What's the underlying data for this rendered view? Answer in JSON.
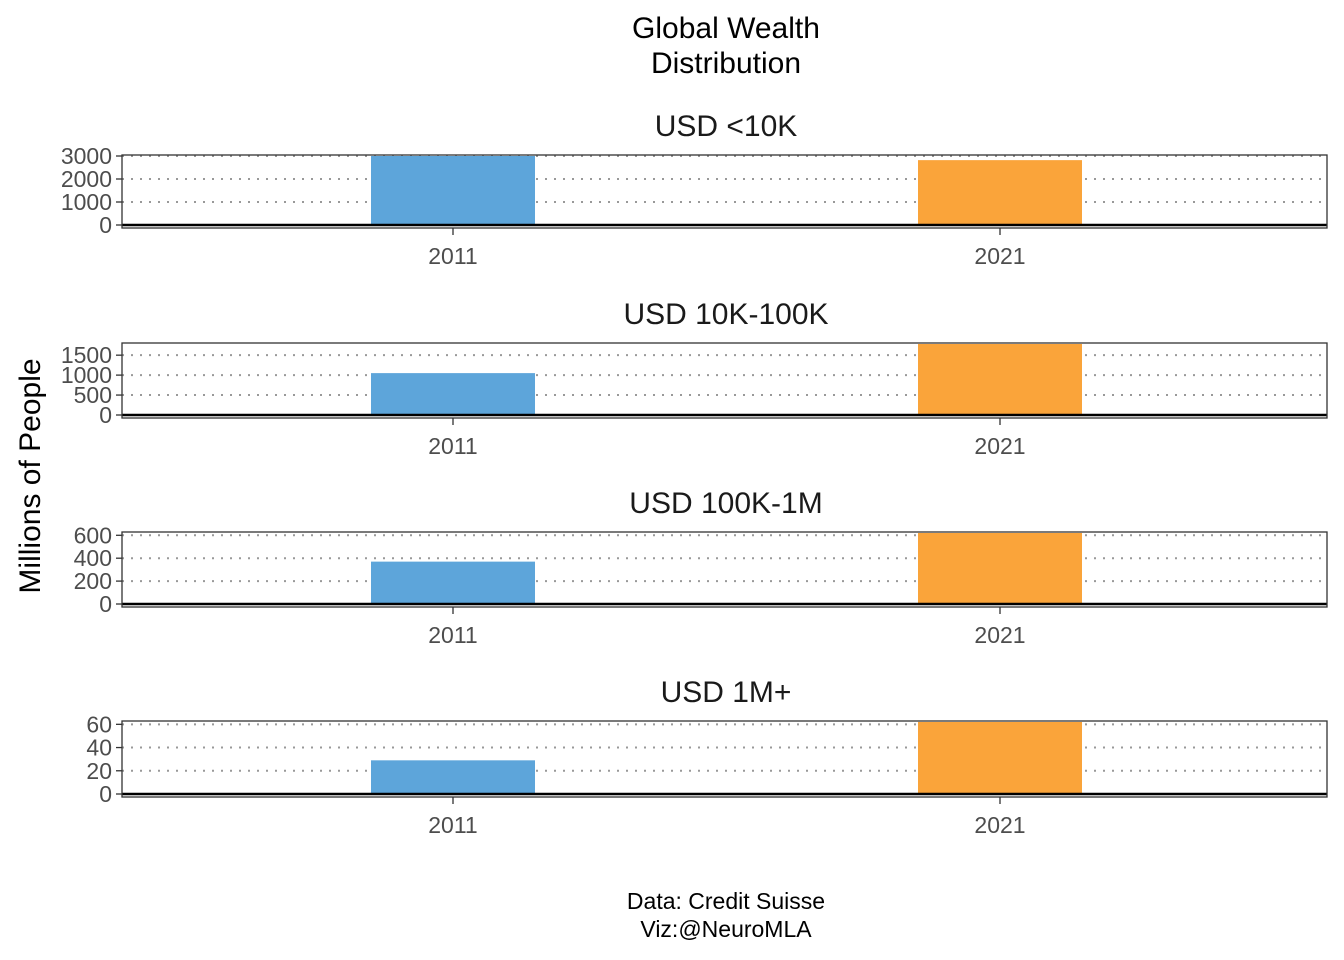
{
  "title_line1": "Global Wealth",
  "title_line2": "Distribution",
  "caption_line1": "Data: Credit Suisse",
  "caption_line2": "Viz:@NeuroMLA",
  "colors": {
    "2011": "#5DA5DA",
    "2021": "#FAA43A",
    "panel_border": "#333333",
    "gridline": "#999999",
    "baseline": "#000000"
  },
  "chart_data": {
    "type": "bar",
    "title": "Global Wealth Distribution",
    "ylabel": "Millions of People",
    "xlabel": "",
    "categories": [
      "2011",
      "2021"
    ],
    "grid": "dotted horizontal",
    "legend": "none",
    "facets": [
      {
        "label": "USD <10K",
        "values": [
          3000,
          2820
        ],
        "ylim": [
          0,
          3000
        ],
        "yticks": [
          0,
          1000,
          2000,
          3000
        ]
      },
      {
        "label": "USD 10K-100K",
        "values": [
          1050,
          1780
        ],
        "ylim": [
          0,
          1780
        ],
        "yticks": [
          0,
          500,
          1000,
          1500
        ]
      },
      {
        "label": "USD 100K-1M",
        "values": [
          370,
          620
        ],
        "ylim": [
          0,
          620
        ],
        "yticks": [
          0,
          200,
          400,
          600
        ]
      },
      {
        "label": "USD 1M+",
        "values": [
          29,
          62
        ],
        "ylim": [
          0,
          62
        ],
        "yticks": [
          0,
          20,
          40,
          60
        ]
      }
    ]
  }
}
